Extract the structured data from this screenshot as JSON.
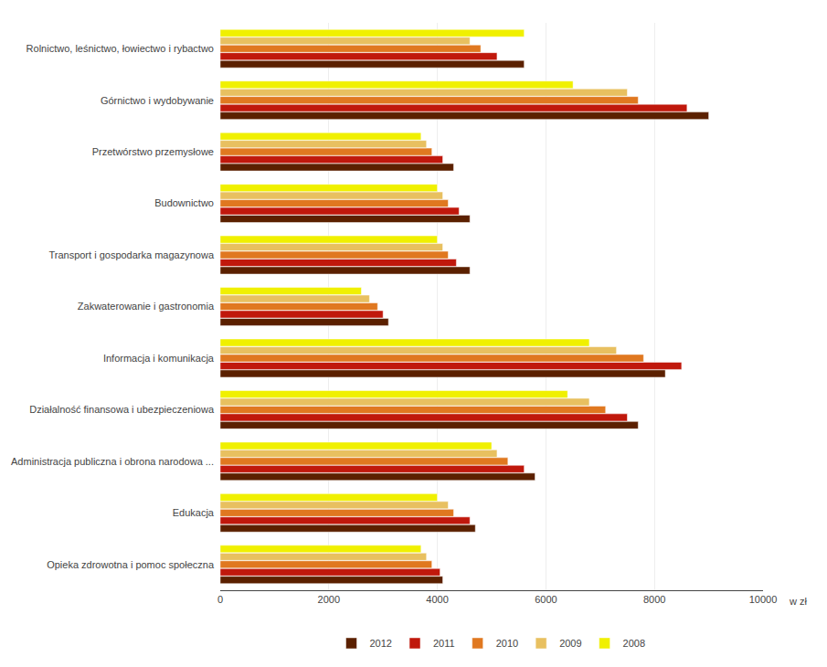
{
  "chart_data": {
    "type": "bar",
    "orientation": "horizontal",
    "categories": [
      "Rolnictwo, leśnictwo, łowiectwo i rybactwo",
      "Górnictwo i wydobywanie",
      "Przetwórstwo przemysłowe",
      "Budownictwo",
      "Transport i gospodarka magazynowa",
      "Zakwaterowanie i gastronomia",
      "Informacja i komunikacja",
      "Działalność finansowa i ubezpieczeniowa",
      "Administracja publiczna i obrona narodowa ...",
      "Edukacja",
      "Opieka zdrowotna i pomoc społeczna"
    ],
    "series": [
      {
        "name": "2012",
        "color": "#5B2000",
        "values": [
          5600,
          9000,
          4300,
          4600,
          4600,
          3100,
          8200,
          7700,
          5800,
          4700,
          4100
        ]
      },
      {
        "name": "2011",
        "color": "#C0180C",
        "values": [
          5100,
          8600,
          4100,
          4400,
          4350,
          3000,
          8500,
          7500,
          5600,
          4600,
          4050
        ]
      },
      {
        "name": "2010",
        "color": "#E07820",
        "values": [
          4800,
          7700,
          3900,
          4200,
          4200,
          2900,
          7800,
          7100,
          5300,
          4300,
          3900
        ]
      },
      {
        "name": "2009",
        "color": "#E8C060",
        "values": [
          4600,
          7500,
          3800,
          4100,
          4100,
          2750,
          7300,
          6800,
          5100,
          4200,
          3800
        ]
      },
      {
        "name": "2008",
        "color": "#F0F000",
        "values": [
          5600,
          6500,
          3700,
          4000,
          4000,
          2600,
          6800,
          6400,
          5000,
          4000,
          3700
        ]
      }
    ],
    "xlim": [
      0,
      10000
    ],
    "xticks": [
      0,
      2000,
      4000,
      6000,
      8000,
      10000
    ],
    "xlabel": "w zł",
    "grid": true,
    "legend": "bottom"
  }
}
